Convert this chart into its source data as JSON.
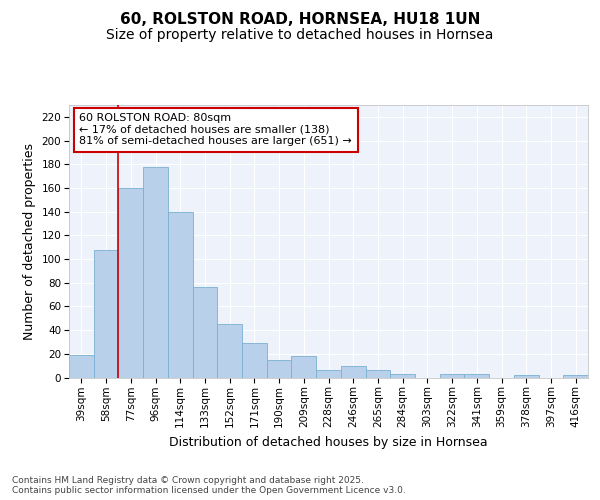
{
  "title_line1": "60, ROLSTON ROAD, HORNSEA, HU18 1UN",
  "title_line2": "Size of property relative to detached houses in Hornsea",
  "xlabel": "Distribution of detached houses by size in Hornsea",
  "ylabel": "Number of detached properties",
  "categories": [
    "39sqm",
    "58sqm",
    "77sqm",
    "96sqm",
    "114sqm",
    "133sqm",
    "152sqm",
    "171sqm",
    "190sqm",
    "209sqm",
    "228sqm",
    "246sqm",
    "265sqm",
    "284sqm",
    "303sqm",
    "322sqm",
    "341sqm",
    "359sqm",
    "378sqm",
    "397sqm",
    "416sqm"
  ],
  "values": [
    19,
    108,
    160,
    178,
    140,
    76,
    45,
    29,
    15,
    18,
    6,
    10,
    6,
    3,
    0,
    3,
    3,
    0,
    2,
    0,
    2
  ],
  "bar_color": "#b8d0ea",
  "bar_edge_color": "#7aafd4",
  "vline_index": 2,
  "vline_color": "#cc0000",
  "annotation_text": "60 ROLSTON ROAD: 80sqm\n← 17% of detached houses are smaller (138)\n81% of semi-detached houses are larger (651) →",
  "annotation_box_color": "#cc0000",
  "annotation_bg": "#ffffff",
  "ylim": [
    0,
    230
  ],
  "yticks": [
    0,
    20,
    40,
    60,
    80,
    100,
    120,
    140,
    160,
    180,
    200,
    220
  ],
  "background_color": "#edf2fb",
  "grid_color": "#ffffff",
  "footer_text": "Contains HM Land Registry data © Crown copyright and database right 2025.\nContains public sector information licensed under the Open Government Licence v3.0.",
  "title_fontsize": 11,
  "subtitle_fontsize": 10,
  "axis_label_fontsize": 9,
  "tick_fontsize": 7.5,
  "annotation_fontsize": 8,
  "footer_fontsize": 6.5
}
